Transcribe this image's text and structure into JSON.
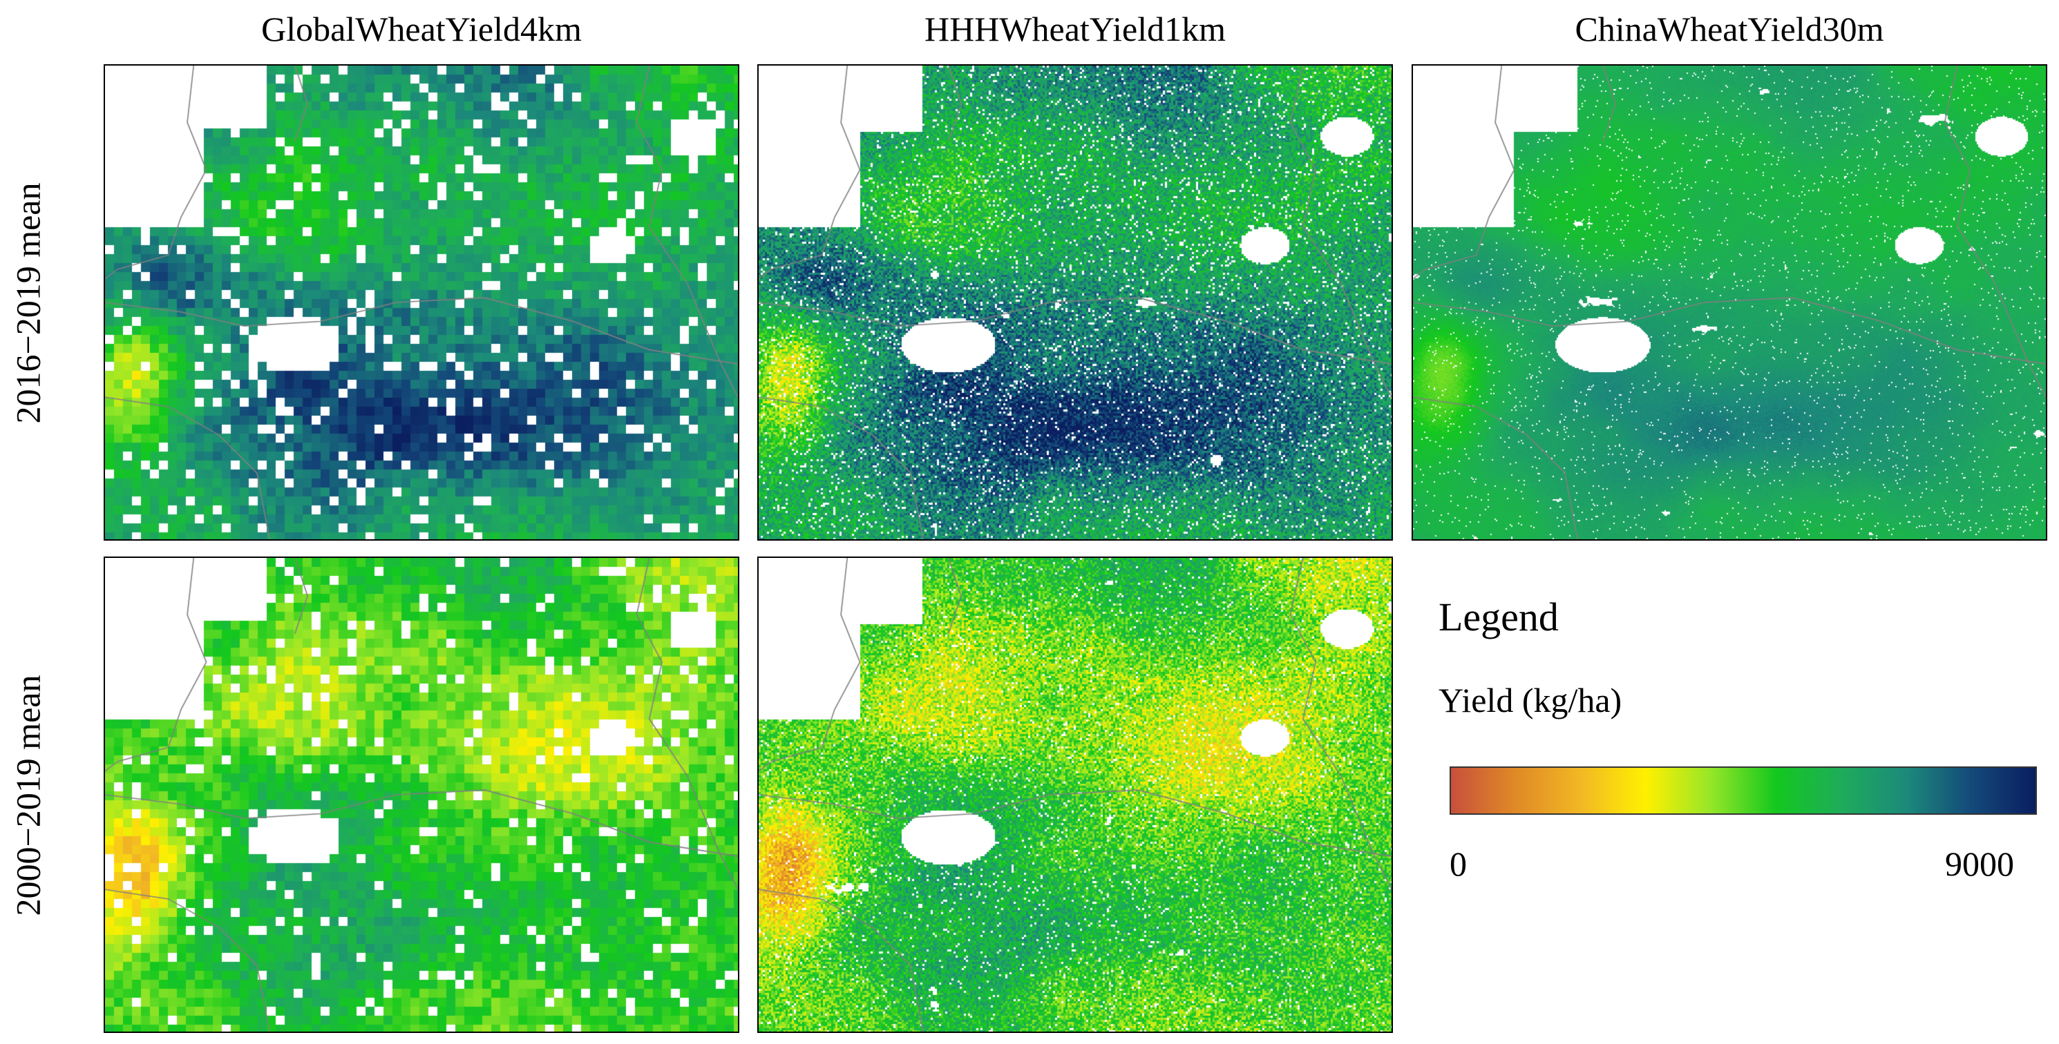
{
  "columns": [
    {
      "title": "GlobalWheatYield4km"
    },
    {
      "title": "HHHWheatYield1km"
    },
    {
      "title": "ChinaWheatYield30m"
    }
  ],
  "rows": [
    {
      "label": "2016−2019 mean"
    },
    {
      "label": "2000−2019 mean"
    }
  ],
  "legend": {
    "title": "Legend",
    "subtitle": "Yield (kg/ha)",
    "min_label": "0",
    "max_label": "9000",
    "colors": [
      "#c8503c",
      "#e08a26",
      "#f2b824",
      "#fff000",
      "#96e628",
      "#14c81e",
      "#1eac5a",
      "#1c8a7a",
      "#144a7a",
      "#0a1e60"
    ]
  },
  "colors": {
    "nodata": "#ffffff",
    "border": "#000000",
    "admin_lines": "#808080"
  }
}
